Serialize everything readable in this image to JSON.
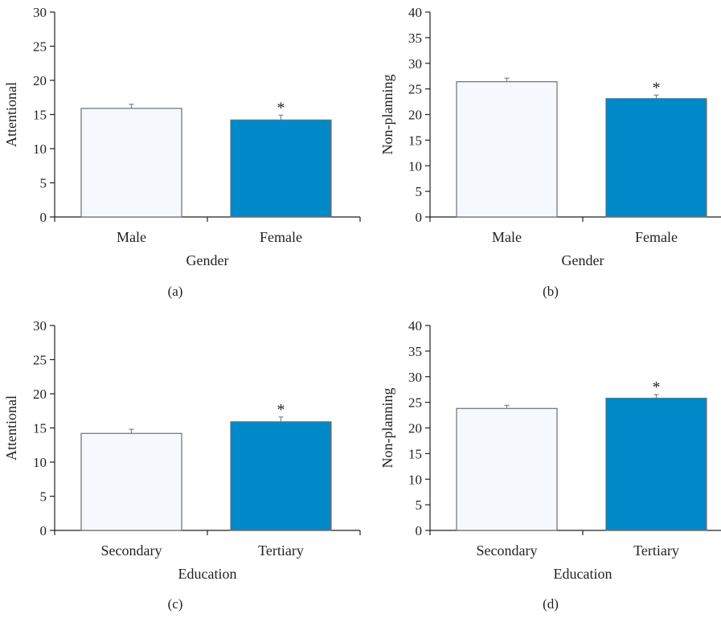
{
  "colors": {
    "male_bar": "#f5f9fd",
    "female_bar": "#0089c8",
    "bar_outline": "#6d6e70",
    "axis": "#231f20",
    "error_bar": "#808285"
  },
  "chart_data": [
    {
      "type": "bar",
      "caption": "(a)",
      "xlabel": "Gender",
      "ylabel": "Attentional",
      "ylim": [
        0,
        30
      ],
      "yticks": [
        0,
        5,
        10,
        15,
        20,
        25,
        30
      ],
      "categories": [
        "Male",
        "Female"
      ],
      "values": [
        15.9,
        14.2
      ],
      "errors": [
        0.6,
        0.7
      ],
      "significance": [
        "",
        "*"
      ]
    },
    {
      "type": "bar",
      "caption": "(b)",
      "xlabel": "Gender",
      "ylabel": "Non-planning",
      "ylim": [
        0,
        40
      ],
      "yticks": [
        0,
        5,
        10,
        15,
        20,
        25,
        30,
        35,
        40
      ],
      "categories": [
        "Male",
        "Female"
      ],
      "values": [
        26.4,
        23.1
      ],
      "errors": [
        0.7,
        0.7
      ],
      "significance": [
        "",
        "*"
      ]
    },
    {
      "type": "bar",
      "caption": "(c)",
      "xlabel": "Education",
      "ylabel": "Attentional",
      "ylim": [
        0,
        30
      ],
      "yticks": [
        0,
        5,
        10,
        15,
        20,
        25,
        30
      ],
      "categories": [
        "Secondary",
        "Tertiary"
      ],
      "values": [
        14.2,
        15.9
      ],
      "errors": [
        0.6,
        0.7
      ],
      "significance": [
        "",
        "*"
      ]
    },
    {
      "type": "bar",
      "caption": "(d)",
      "xlabel": "Education",
      "ylabel": "Non-planning",
      "ylim": [
        0,
        40
      ],
      "yticks": [
        0,
        5,
        10,
        15,
        20,
        25,
        30,
        35,
        40
      ],
      "categories": [
        "Secondary",
        "Tertiary"
      ],
      "values": [
        23.8,
        25.8
      ],
      "errors": [
        0.6,
        0.7
      ],
      "significance": [
        "",
        "*"
      ]
    }
  ]
}
